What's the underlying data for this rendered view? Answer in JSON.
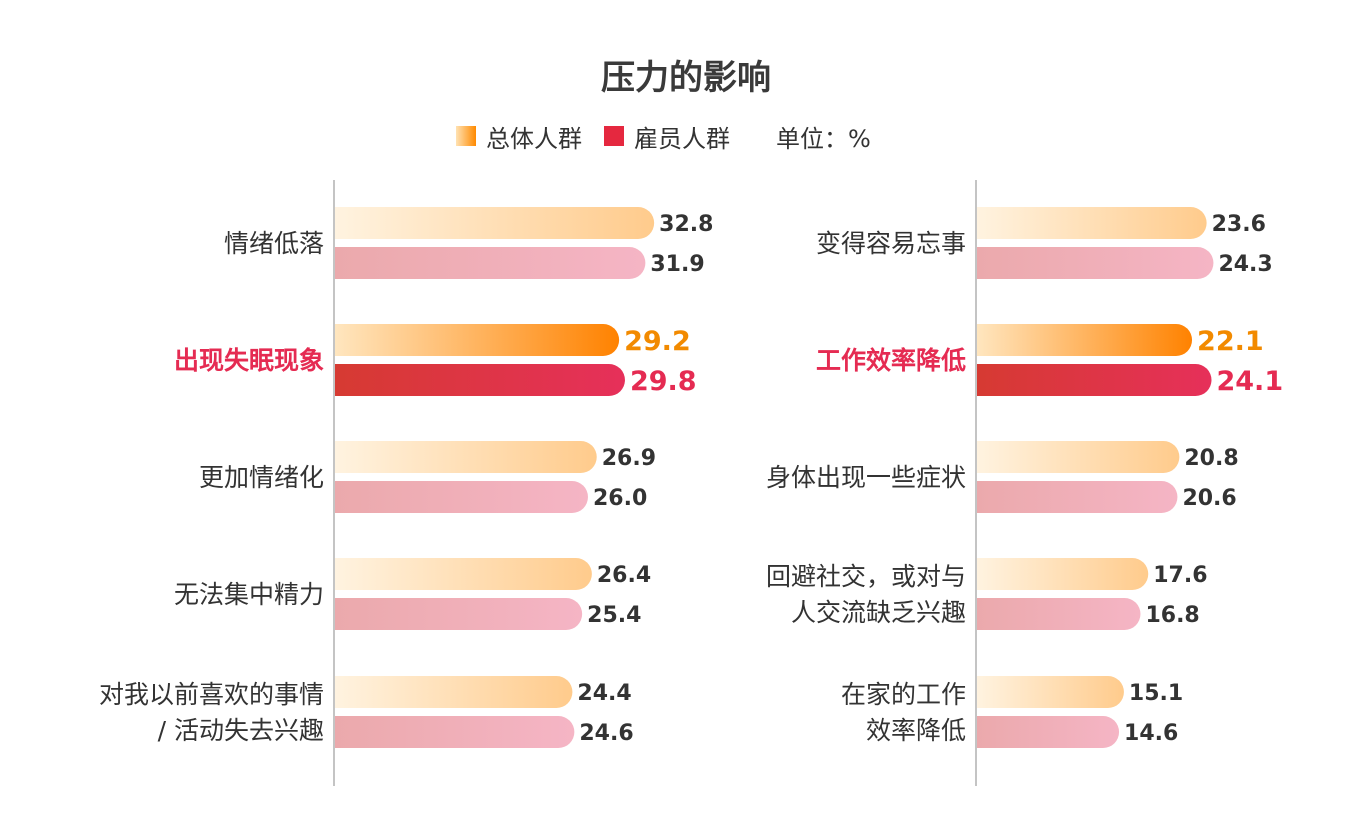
{
  "title": "压力的影响",
  "legend": {
    "series1": "总体人群",
    "series2": "雇员人群",
    "unit": "单位：%"
  },
  "colors": {
    "total_light_start": "#fff3e0",
    "total_light_end": "#ffcb8c",
    "emp_light_start": "#eba9ac",
    "emp_light_end": "#f5b5c5",
    "total_hl_start": "#ffe6bf",
    "total_hl_end": "#ff8200",
    "emp_hl_start": "#d63a32",
    "emp_hl_end": "#e6305a",
    "label_hl": "#e52b52",
    "value_hl_total": "#f28a00",
    "value_hl_emp": "#e52b52",
    "text": "#333333",
    "axis": "#888888"
  },
  "chart_data": [
    {
      "type": "bar",
      "orientation": "horizontal",
      "title": "压力的影响",
      "series": [
        {
          "name": "总体人群",
          "values": [
            32.8,
            29.2,
            26.9,
            26.4,
            24.4
          ]
        },
        {
          "name": "雇员人群",
          "values": [
            31.9,
            29.8,
            26.0,
            25.4,
            24.6
          ]
        }
      ],
      "categories": [
        {
          "lines": [
            "情绪低落"
          ],
          "highlight": false
        },
        {
          "lines": [
            "出现失眠现象"
          ],
          "highlight": true
        },
        {
          "lines": [
            "更加情绪化"
          ],
          "highlight": false
        },
        {
          "lines": [
            "无法集中精力"
          ],
          "highlight": false
        },
        {
          "lines": [
            "对我以前喜欢的事情",
            "/ 活动失去兴趣"
          ],
          "highlight": false
        }
      ],
      "unit": "%"
    },
    {
      "type": "bar",
      "orientation": "horizontal",
      "series": [
        {
          "name": "总体人群",
          "values": [
            23.6,
            22.1,
            20.8,
            17.6,
            15.1
          ]
        },
        {
          "name": "雇员人群",
          "values": [
            24.3,
            24.1,
            20.6,
            16.8,
            14.6
          ]
        }
      ],
      "categories": [
        {
          "lines": [
            "变得容易忘事"
          ],
          "highlight": false
        },
        {
          "lines": [
            "工作效率降低"
          ],
          "highlight": true
        },
        {
          "lines": [
            "身体出现一些症状"
          ],
          "highlight": false
        },
        {
          "lines": [
            "回避社交，或对与",
            "人交流缺乏兴趣"
          ],
          "highlight": false
        },
        {
          "lines": [
            "在家的工作",
            "效率降低"
          ],
          "highlight": false
        }
      ],
      "unit": "%"
    }
  ]
}
